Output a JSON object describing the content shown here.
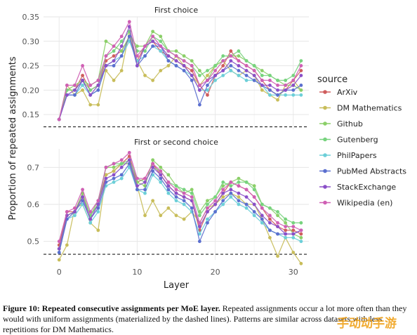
{
  "caption": {
    "lead": "Figure 10: Repeated consecutive assignments per MoE layer.",
    "rest": "Repeated assignments occur a lot more often than they would with uniform assignments (materialized by the dashed lines). Patterns are similar across datasets with less repetitions for DM Mathematics."
  },
  "watermark": "手动动手游",
  "chart_data": {
    "type": "line",
    "ylabel": "Proportion of repeated assignments",
    "xlabel": "Layer",
    "x_ticks": [
      0,
      10,
      20,
      30
    ],
    "legend": {
      "title": "source",
      "placement": "right"
    },
    "series_styles": [
      {
        "name": "ArXiv",
        "color": "#cf5d5d"
      },
      {
        "name": "DM Mathematics",
        "color": "#c8bd5a"
      },
      {
        "name": "Github",
        "color": "#8bcf68"
      },
      {
        "name": "Gutenberg",
        "color": "#77d37e"
      },
      {
        "name": "PhilPapers",
        "color": "#6ccfd8"
      },
      {
        "name": "PubMed Abstracts",
        "color": "#5b6fcf"
      },
      {
        "name": "StackExchange",
        "color": "#8a4fc8"
      },
      {
        "name": "Wikipedia (en)",
        "color": "#cf5fb4"
      }
    ],
    "panels": [
      {
        "title": "First choice",
        "ylim": [
          0.12,
          0.35
        ],
        "yticks": [
          0.15,
          0.2,
          0.25,
          0.3,
          0.35
        ],
        "baseline": 0.125,
        "series": [
          {
            "name": "ArXiv",
            "values": [
              0.14,
              0.2,
              0.2,
              0.23,
              0.2,
              0.21,
              0.26,
              0.27,
              0.28,
              0.31,
              0.26,
              0.29,
              0.3,
              0.28,
              0.27,
              0.26,
              0.25,
              0.24,
              0.21,
              0.19,
              0.23,
              0.25,
              0.28,
              0.26,
              0.25,
              0.24,
              0.22,
              0.2,
              0.19,
              0.2,
              0.22,
              0.24
            ]
          },
          {
            "name": "DM Mathematics",
            "values": [
              0.14,
              0.21,
              0.19,
              0.2,
              0.17,
              0.17,
              0.24,
              0.22,
              0.24,
              0.32,
              0.26,
              0.23,
              0.22,
              0.24,
              0.25,
              0.27,
              0.25,
              0.23,
              0.21,
              0.23,
              0.25,
              0.26,
              0.24,
              0.23,
              0.24,
              0.23,
              0.2,
              0.19,
              0.18,
              0.21,
              0.22,
              0.2
            ]
          },
          {
            "name": "Github",
            "values": [
              0.14,
              0.2,
              0.21,
              0.22,
              0.21,
              0.22,
              0.3,
              0.29,
              0.28,
              0.31,
              0.29,
              0.29,
              0.32,
              0.31,
              0.28,
              0.28,
              0.27,
              0.26,
              0.24,
              0.22,
              0.25,
              0.26,
              0.27,
              0.27,
              0.26,
              0.25,
              0.24,
              0.23,
              0.22,
              0.21,
              0.21,
              0.2
            ]
          },
          {
            "name": "Gutenberg",
            "values": [
              0.14,
              0.2,
              0.2,
              0.22,
              0.2,
              0.21,
              0.27,
              0.28,
              0.3,
              0.32,
              0.28,
              0.28,
              0.31,
              0.3,
              0.28,
              0.27,
              0.26,
              0.25,
              0.23,
              0.24,
              0.25,
              0.27,
              0.27,
              0.28,
              0.26,
              0.25,
              0.23,
              0.23,
              0.22,
              0.22,
              0.23,
              0.26
            ]
          },
          {
            "name": "PhilPapers",
            "values": [
              0.14,
              0.19,
              0.19,
              0.21,
              0.19,
              0.2,
              0.25,
              0.26,
              0.27,
              0.3,
              0.26,
              0.27,
              0.29,
              0.28,
              0.26,
              0.25,
              0.24,
              0.23,
              0.2,
              0.2,
              0.22,
              0.23,
              0.24,
              0.23,
              0.22,
              0.22,
              0.21,
              0.19,
              0.19,
              0.19,
              0.19,
              0.19
            ]
          },
          {
            "name": "PubMed Abstracts",
            "values": [
              0.14,
              0.19,
              0.19,
              0.22,
              0.19,
              0.2,
              0.25,
              0.25,
              0.27,
              0.31,
              0.25,
              0.27,
              0.29,
              0.29,
              0.26,
              0.25,
              0.24,
              0.22,
              0.17,
              0.21,
              0.23,
              0.24,
              0.25,
              0.24,
              0.23,
              0.22,
              0.21,
              0.2,
              0.19,
              0.2,
              0.2,
              0.21
            ]
          },
          {
            "name": "StackExchange",
            "values": [
              0.14,
              0.19,
              0.2,
              0.22,
              0.19,
              0.21,
              0.25,
              0.26,
              0.29,
              0.33,
              0.25,
              0.29,
              0.3,
              0.29,
              0.27,
              0.26,
              0.25,
              0.23,
              0.2,
              0.22,
              0.23,
              0.24,
              0.26,
              0.25,
              0.24,
              0.23,
              0.21,
              0.21,
              0.2,
              0.2,
              0.21,
              0.23
            ]
          },
          {
            "name": "Wikipedia (en)",
            "values": [
              0.14,
              0.21,
              0.21,
              0.25,
              0.21,
              0.22,
              0.27,
              0.29,
              0.31,
              0.34,
              0.27,
              0.29,
              0.31,
              0.29,
              0.28,
              0.27,
              0.26,
              0.25,
              0.21,
              0.22,
              0.24,
              0.26,
              0.27,
              0.26,
              0.25,
              0.24,
              0.22,
              0.22,
              0.21,
              0.21,
              0.22,
              0.25
            ]
          }
        ]
      },
      {
        "title": "First or second choice",
        "ylim": [
          0.45,
          0.75
        ],
        "yticks": [
          0.5,
          0.6,
          0.7
        ],
        "baseline": 0.465,
        "series": [
          {
            "name": "ArXiv",
            "values": [
              0.49,
              0.58,
              0.58,
              0.63,
              0.57,
              0.6,
              0.68,
              0.69,
              0.71,
              0.73,
              0.66,
              0.67,
              0.71,
              0.68,
              0.65,
              0.63,
              0.62,
              0.61,
              0.53,
              0.58,
              0.6,
              0.63,
              0.66,
              0.65,
              0.64,
              0.62,
              0.59,
              0.56,
              0.54,
              0.53,
              0.53,
              0.52
            ]
          },
          {
            "name": "DM Mathematics",
            "values": [
              0.45,
              0.49,
              0.59,
              0.6,
              0.55,
              0.53,
              0.68,
              0.69,
              0.71,
              0.71,
              0.65,
              0.57,
              0.61,
              0.57,
              0.59,
              0.57,
              0.56,
              0.58,
              0.55,
              0.59,
              0.6,
              0.62,
              0.63,
              0.62,
              0.6,
              0.6,
              0.56,
              0.51,
              0.46,
              0.51,
              0.47,
              0.44
            ]
          },
          {
            "name": "Github",
            "values": [
              0.48,
              0.57,
              0.58,
              0.63,
              0.57,
              0.61,
              0.7,
              0.7,
              0.71,
              0.71,
              0.66,
              0.65,
              0.72,
              0.7,
              0.68,
              0.65,
              0.63,
              0.64,
              0.58,
              0.61,
              0.62,
              0.65,
              0.66,
              0.67,
              0.66,
              0.65,
              0.6,
              0.59,
              0.57,
              0.55,
              0.52,
              0.51
            ]
          },
          {
            "name": "Gutenberg",
            "values": [
              0.48,
              0.57,
              0.58,
              0.62,
              0.57,
              0.6,
              0.7,
              0.71,
              0.71,
              0.72,
              0.67,
              0.66,
              0.7,
              0.69,
              0.66,
              0.65,
              0.64,
              0.63,
              0.57,
              0.6,
              0.62,
              0.66,
              0.65,
              0.66,
              0.66,
              0.64,
              0.6,
              0.59,
              0.58,
              0.56,
              0.55,
              0.55
            ]
          },
          {
            "name": "PhilPapers",
            "values": [
              0.47,
              0.56,
              0.57,
              0.6,
              0.55,
              0.58,
              0.65,
              0.66,
              0.67,
              0.7,
              0.64,
              0.63,
              0.68,
              0.66,
              0.63,
              0.61,
              0.6,
              0.58,
              0.52,
              0.56,
              0.58,
              0.6,
              0.62,
              0.6,
              0.59,
              0.57,
              0.55,
              0.53,
              0.52,
              0.51,
              0.51,
              0.5
            ]
          },
          {
            "name": "PubMed Abstracts",
            "values": [
              0.47,
              0.56,
              0.58,
              0.61,
              0.56,
              0.59,
              0.66,
              0.67,
              0.68,
              0.71,
              0.64,
              0.64,
              0.69,
              0.67,
              0.64,
              0.62,
              0.61,
              0.59,
              0.5,
              0.55,
              0.58,
              0.61,
              0.63,
              0.61,
              0.6,
              0.58,
              0.56,
              0.53,
              0.52,
              0.52,
              0.52,
              0.53
            ]
          },
          {
            "name": "StackExchange",
            "values": [
              0.48,
              0.57,
              0.58,
              0.62,
              0.56,
              0.6,
              0.67,
              0.68,
              0.7,
              0.72,
              0.65,
              0.66,
              0.7,
              0.68,
              0.65,
              0.63,
              0.62,
              0.61,
              0.54,
              0.58,
              0.6,
              0.63,
              0.64,
              0.63,
              0.62,
              0.6,
              0.57,
              0.55,
              0.54,
              0.52,
              0.52,
              0.53
            ]
          },
          {
            "name": "Wikipedia (en)",
            "values": [
              0.5,
              0.58,
              0.59,
              0.64,
              0.58,
              0.61,
              0.7,
              0.71,
              0.72,
              0.74,
              0.67,
              0.67,
              0.71,
              0.69,
              0.66,
              0.64,
              0.63,
              0.62,
              0.55,
              0.59,
              0.61,
              0.64,
              0.66,
              0.65,
              0.64,
              0.62,
              0.59,
              0.57,
              0.55,
              0.54,
              0.54,
              0.53
            ]
          }
        ]
      }
    ]
  }
}
